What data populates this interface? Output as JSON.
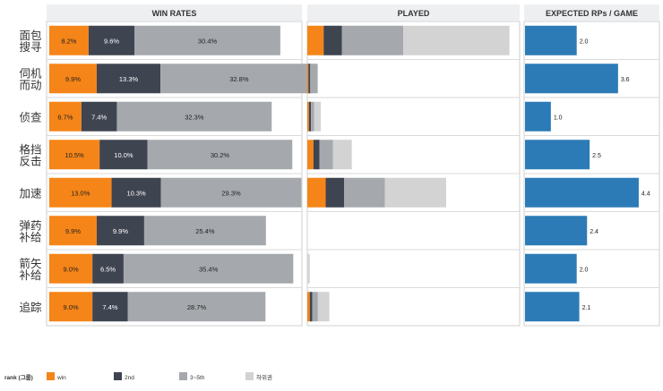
{
  "chart_data": {
    "type": "bar",
    "panels": [
      {
        "title": "WIN RATES"
      },
      {
        "title": "PLAYED"
      },
      {
        "title": "EXPECTED RPs / GAME"
      }
    ],
    "categories": [
      [
        "面包",
        "搜寻"
      ],
      [
        "伺机",
        "而动"
      ],
      [
        "侦查"
      ],
      [
        "格挡",
        "反击"
      ],
      [
        "加速"
      ],
      [
        "弹药",
        "补给"
      ],
      [
        "箭矢",
        "补给"
      ],
      [
        "追踪"
      ]
    ],
    "win_rates": {
      "series": [
        {
          "name": "win",
          "values": [
            8.2,
            9.9,
            6.7,
            10.5,
            13.0,
            9.9,
            9.0,
            9.0
          ]
        },
        {
          "name": "2nd",
          "values": [
            9.6,
            13.3,
            7.4,
            10.0,
            10.3,
            9.9,
            6.5,
            7.4
          ]
        },
        {
          "name": "3~5th",
          "values": [
            30.4,
            32.8,
            32.3,
            30.2,
            29.3,
            25.4,
            35.4,
            28.7
          ]
        }
      ],
      "value_suffix": "%"
    },
    "played": {
      "series": [
        {
          "name": "win",
          "values": [
            4,
            0.3,
            0.4,
            1.5,
            4.5,
            0,
            0,
            0.6
          ]
        },
        {
          "name": "2nd",
          "values": [
            4.5,
            0.4,
            0.5,
            1.5,
            4.5,
            0,
            0,
            0.6
          ]
        },
        {
          "name": "3~5th",
          "values": [
            15,
            0.6,
            0.8,
            3.3,
            10,
            0,
            0,
            1.4
          ]
        },
        {
          "name": "하위권",
          "values": [
            26,
            0,
            1.6,
            4.6,
            15,
            0,
            0.6,
            2.8
          ]
        }
      ],
      "xlim": [
        0,
        52
      ]
    },
    "expected_rps": {
      "values": [
        2.0,
        3.6,
        1.0,
        2.5,
        4.4,
        2.4,
        2.0,
        2.1
      ],
      "xlim": [
        0,
        5.2
      ],
      "labels": [
        "2.0",
        "3.6",
        "1.0",
        "2.5",
        "4.4",
        "2.4",
        "2.0",
        "2.1"
      ]
    },
    "legend": {
      "title": "rank (그룹)",
      "placement": "bottom",
      "items": [
        {
          "name": "win",
          "color": "#F58518"
        },
        {
          "name": "2nd",
          "color": "#3F4451"
        },
        {
          "name": "3~5th",
          "color": "#A5A9AD"
        },
        {
          "name": "하위권",
          "color": "#D3D3D3"
        }
      ]
    },
    "colors": {
      "win": "#F58518",
      "2nd": "#3F4451",
      "3~5th": "#A5A9AD",
      "하위권": "#D3D3D3",
      "rp": "#2C7BB6",
      "header_bg": "#EEEFF1"
    }
  }
}
